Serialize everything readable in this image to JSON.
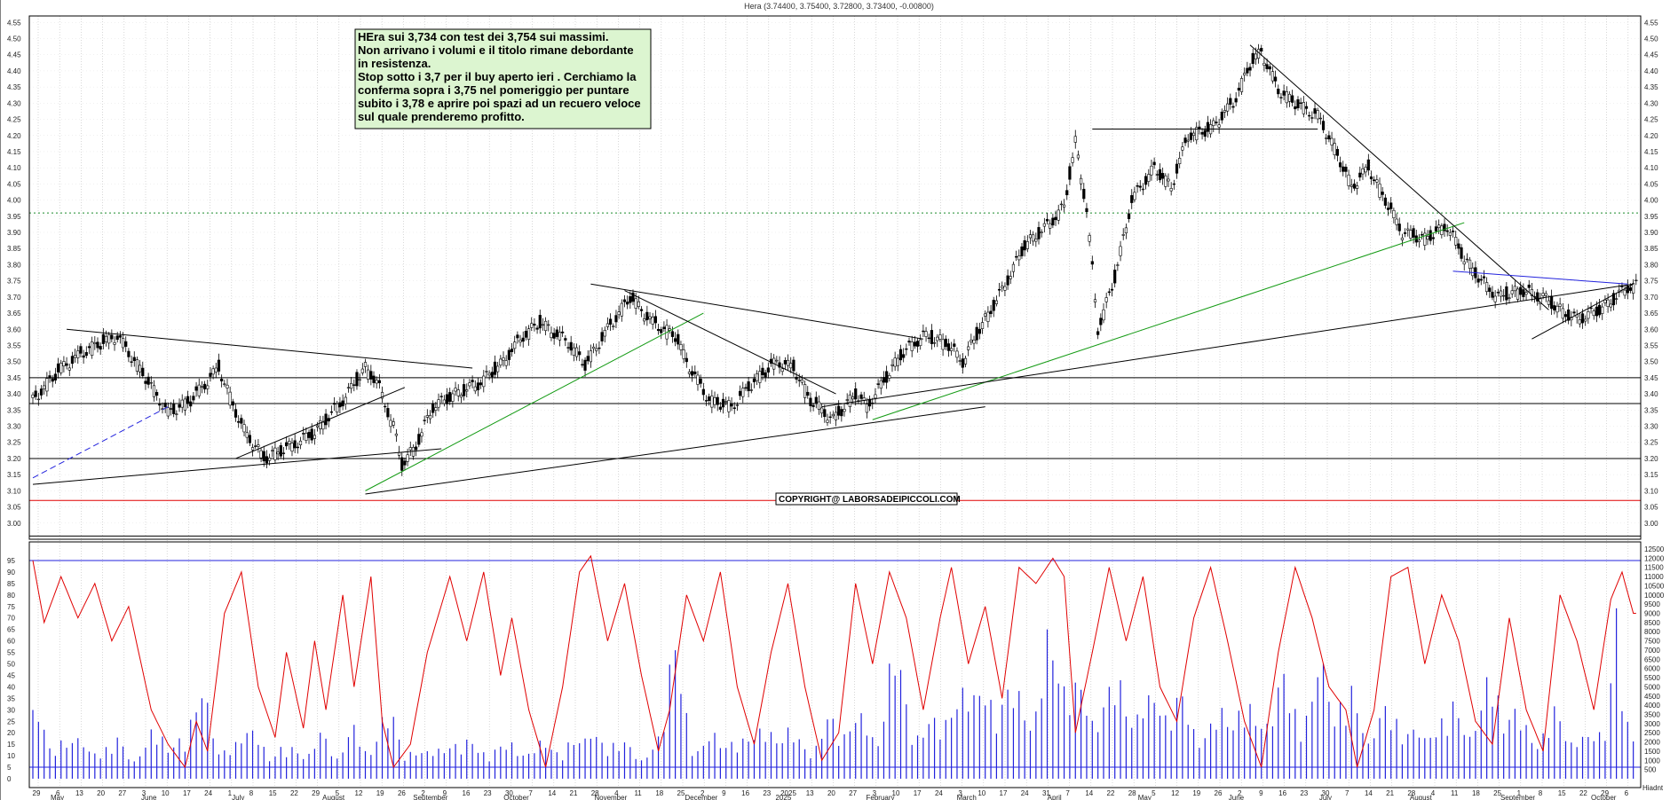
{
  "header": "Hera (3.74400, 3.75400, 3.72800, 3.73400, -0.00800)",
  "note": {
    "lines": [
      "HEra sui 3,734 con test dei 3,754 sui massimi.",
      "Non arrivano i volumi e il titolo rimane debordante",
      "in resistenza.",
      "Stop sotto i 3,7 per il buy aperto ieri . Cerchiamo la",
      "conferma sopra i 3,75 nel pomeriggio per puntare",
      "subito i 3,78 e aprire poi spazi ad un recuero veloce",
      "sul quale prenderemo profitto."
    ]
  },
  "copyright": "COPYRIGHT@ LABORSADEIPICCOLI.COM",
  "colors": {
    "candle": "#000000",
    "oscillator": "#e00000",
    "volume": "#2222dd",
    "trend_green": "#129a12",
    "note_bg": "#dcf5d0",
    "support_red": "#e00000",
    "resistance_dotted": "#1a8a2a"
  },
  "chart_data": {
    "type": "candlestick",
    "grid": true,
    "y_axis_side": "both",
    "price_axis": {
      "ylim": [
        2.95,
        4.57
      ],
      "ticks": [
        "4.55",
        "4.50",
        "4.45",
        "4.40",
        "4.35",
        "4.30",
        "4.25",
        "4.20",
        "4.15",
        "4.10",
        "4.05",
        "4.00",
        "3.95",
        "3.90",
        "3.85",
        "3.80",
        "3.75",
        "3.70",
        "3.65",
        "3.60",
        "3.55",
        "3.50",
        "3.45",
        "3.40",
        "3.35",
        "3.30",
        "3.25",
        "3.20",
        "3.15",
        "3.10",
        "3.05",
        "3.00"
      ]
    },
    "oscillator_axis": {
      "ylim": [
        0,
        100
      ],
      "ticks": [
        "95",
        "90",
        "85",
        "80",
        "75",
        "70",
        "65",
        "60",
        "55",
        "50",
        "45",
        "40",
        "35",
        "30",
        "25",
        "20",
        "15",
        "10",
        "5",
        "0"
      ]
    },
    "volume_axis": {
      "ylim": [
        0,
        12500
      ],
      "ticks": [
        "12500",
        "12000",
        "11500",
        "11000",
        "10500",
        "10000",
        "9500",
        "9000",
        "8500",
        "8000",
        "7500",
        "7000",
        "6500",
        "6000",
        "5500",
        "5000",
        "4500",
        "4000",
        "3500",
        "3000",
        "2500",
        "2000",
        "1500",
        "1000",
        "500"
      ]
    },
    "day_labels": [
      "29",
      "6",
      "13",
      "20",
      "27",
      "3",
      "10",
      "17",
      "24",
      "1",
      "8",
      "15",
      "22",
      "29",
      "5",
      "12",
      "19",
      "26",
      "2",
      "9",
      "16",
      "23",
      "30",
      "7",
      "14",
      "21",
      "28",
      "4",
      "11",
      "18",
      "25",
      "2",
      "9",
      "16",
      "23",
      "2025",
      "13",
      "20",
      "27",
      "3",
      "10",
      "17",
      "24",
      "3",
      "10",
      "17",
      "24",
      "31",
      "7",
      "14",
      "22",
      "28",
      "5",
      "12",
      "19",
      "26",
      "2",
      "9",
      "16",
      "23",
      "30",
      "7",
      "14",
      "21",
      "28",
      "4",
      "11",
      "18",
      "25",
      "1",
      "8",
      "15",
      "22",
      "29",
      "6"
    ],
    "month_labels": [
      "May",
      "June",
      "July",
      "August",
      "September",
      "October",
      "November",
      "December",
      "2025",
      "February",
      "March",
      "April",
      "May",
      "June",
      "July",
      "August",
      "September",
      "October"
    ],
    "axis_note": "Hiadnt",
    "horizontal_levels": [
      {
        "value": 3.45,
        "color": "#000000",
        "style": "solid"
      },
      {
        "value": 3.37,
        "color": "#000000",
        "style": "solid"
      },
      {
        "value": 3.2,
        "color": "#000000",
        "style": "solid"
      },
      {
        "value": 3.07,
        "color": "#e00000",
        "style": "solid"
      },
      {
        "value": 2.96,
        "color": "#000000",
        "style": "solid"
      },
      {
        "value": 3.96,
        "color": "#1a8a2a",
        "style": "dotted"
      }
    ],
    "oscillator_levels": [
      {
        "value": 95,
        "color": "#2222dd"
      },
      {
        "value": 5,
        "color": "#2222dd"
      }
    ],
    "price_path": [
      [
        0,
        3.38
      ],
      [
        10,
        3.48
      ],
      [
        20,
        3.54
      ],
      [
        30,
        3.58
      ],
      [
        40,
        3.45
      ],
      [
        48,
        3.34
      ],
      [
        56,
        3.38
      ],
      [
        66,
        3.48
      ],
      [
        74,
        3.3
      ],
      [
        82,
        3.2
      ],
      [
        92,
        3.24
      ],
      [
        100,
        3.28
      ],
      [
        110,
        3.38
      ],
      [
        118,
        3.48
      ],
      [
        122,
        3.44
      ],
      [
        128,
        3.3
      ],
      [
        131,
        3.18
      ],
      [
        136,
        3.24
      ],
      [
        142,
        3.36
      ],
      [
        150,
        3.4
      ],
      [
        158,
        3.43
      ],
      [
        166,
        3.49
      ],
      [
        174,
        3.58
      ],
      [
        180,
        3.62
      ],
      [
        190,
        3.56
      ],
      [
        196,
        3.49
      ],
      [
        204,
        3.6
      ],
      [
        212,
        3.7
      ],
      [
        220,
        3.62
      ],
      [
        228,
        3.58
      ],
      [
        232,
        3.5
      ],
      [
        240,
        3.38
      ],
      [
        248,
        3.36
      ],
      [
        256,
        3.44
      ],
      [
        264,
        3.5
      ],
      [
        270,
        3.48
      ],
      [
        276,
        3.38
      ],
      [
        284,
        3.32
      ],
      [
        292,
        3.4
      ],
      [
        296,
        3.36
      ],
      [
        302,
        3.44
      ],
      [
        308,
        3.52
      ],
      [
        316,
        3.58
      ],
      [
        324,
        3.56
      ],
      [
        330,
        3.5
      ],
      [
        336,
        3.6
      ],
      [
        344,
        3.72
      ],
      [
        352,
        3.86
      ],
      [
        360,
        3.92
      ],
      [
        366,
        3.98
      ],
      [
        370,
        4.18
      ],
      [
        374,
        3.97
      ],
      [
        378,
        3.6
      ],
      [
        384,
        3.76
      ],
      [
        390,
        4.0
      ],
      [
        398,
        4.1
      ],
      [
        404,
        4.04
      ],
      [
        410,
        4.2
      ],
      [
        418,
        4.22
      ],
      [
        426,
        4.3
      ],
      [
        432,
        4.42
      ],
      [
        436,
        4.46
      ],
      [
        442,
        4.34
      ],
      [
        448,
        4.3
      ],
      [
        456,
        4.26
      ],
      [
        462,
        4.16
      ],
      [
        468,
        4.04
      ],
      [
        474,
        4.1
      ],
      [
        480,
        4.0
      ],
      [
        486,
        3.9
      ],
      [
        494,
        3.88
      ],
      [
        502,
        3.92
      ],
      [
        508,
        3.82
      ],
      [
        514,
        3.75
      ],
      [
        520,
        3.7
      ],
      [
        528,
        3.72
      ],
      [
        536,
        3.7
      ],
      [
        542,
        3.66
      ],
      [
        548,
        3.63
      ],
      [
        556,
        3.66
      ],
      [
        562,
        3.7
      ],
      [
        566,
        3.73
      ],
      [
        568,
        3.734
      ]
    ],
    "oscillator_path": [
      [
        0,
        95
      ],
      [
        4,
        68
      ],
      [
        10,
        88
      ],
      [
        16,
        70
      ],
      [
        22,
        85
      ],
      [
        28,
        60
      ],
      [
        34,
        75
      ],
      [
        42,
        30
      ],
      [
        48,
        15
      ],
      [
        54,
        5
      ],
      [
        58,
        25
      ],
      [
        62,
        12
      ],
      [
        68,
        72
      ],
      [
        74,
        90
      ],
      [
        80,
        40
      ],
      [
        86,
        18
      ],
      [
        90,
        55
      ],
      [
        96,
        22
      ],
      [
        100,
        60
      ],
      [
        104,
        30
      ],
      [
        110,
        80
      ],
      [
        114,
        40
      ],
      [
        120,
        88
      ],
      [
        124,
        25
      ],
      [
        128,
        5
      ],
      [
        134,
        15
      ],
      [
        140,
        55
      ],
      [
        148,
        88
      ],
      [
        154,
        60
      ],
      [
        160,
        90
      ],
      [
        166,
        45
      ],
      [
        170,
        70
      ],
      [
        176,
        30
      ],
      [
        182,
        5
      ],
      [
        188,
        40
      ],
      [
        194,
        90
      ],
      [
        198,
        97
      ],
      [
        204,
        60
      ],
      [
        210,
        85
      ],
      [
        216,
        45
      ],
      [
        222,
        12
      ],
      [
        226,
        30
      ],
      [
        232,
        80
      ],
      [
        238,
        60
      ],
      [
        244,
        90
      ],
      [
        250,
        40
      ],
      [
        256,
        15
      ],
      [
        262,
        55
      ],
      [
        268,
        85
      ],
      [
        274,
        40
      ],
      [
        280,
        8
      ],
      [
        286,
        20
      ],
      [
        292,
        85
      ],
      [
        298,
        50
      ],
      [
        304,
        90
      ],
      [
        310,
        70
      ],
      [
        316,
        30
      ],
      [
        322,
        70
      ],
      [
        326,
        92
      ],
      [
        332,
        50
      ],
      [
        338,
        75
      ],
      [
        344,
        35
      ],
      [
        350,
        92
      ],
      [
        356,
        85
      ],
      [
        362,
        96
      ],
      [
        366,
        88
      ],
      [
        370,
        20
      ],
      [
        376,
        55
      ],
      [
        382,
        92
      ],
      [
        388,
        60
      ],
      [
        394,
        88
      ],
      [
        400,
        40
      ],
      [
        406,
        25
      ],
      [
        412,
        70
      ],
      [
        418,
        92
      ],
      [
        424,
        60
      ],
      [
        430,
        25
      ],
      [
        436,
        5
      ],
      [
        442,
        55
      ],
      [
        448,
        92
      ],
      [
        454,
        70
      ],
      [
        460,
        40
      ],
      [
        466,
        30
      ],
      [
        470,
        5
      ],
      [
        476,
        30
      ],
      [
        482,
        88
      ],
      [
        488,
        92
      ],
      [
        494,
        50
      ],
      [
        500,
        80
      ],
      [
        506,
        60
      ],
      [
        512,
        25
      ],
      [
        518,
        15
      ],
      [
        524,
        70
      ],
      [
        530,
        30
      ],
      [
        536,
        12
      ],
      [
        542,
        80
      ],
      [
        548,
        60
      ],
      [
        554,
        30
      ],
      [
        560,
        78
      ],
      [
        564,
        90
      ],
      [
        568,
        72
      ]
    ],
    "volume_path": [
      [
        0,
        6800
      ],
      [
        6,
        1900
      ],
      [
        12,
        2200
      ],
      [
        18,
        3100
      ],
      [
        24,
        1600
      ],
      [
        30,
        2400
      ],
      [
        36,
        1200
      ],
      [
        42,
        3800
      ],
      [
        48,
        1800
      ],
      [
        54,
        2600
      ],
      [
        60,
        7600
      ],
      [
        66,
        1500
      ],
      [
        72,
        2100
      ],
      [
        78,
        4300
      ],
      [
        84,
        1300
      ],
      [
        90,
        2000
      ],
      [
        96,
        1700
      ],
      [
        102,
        3400
      ],
      [
        108,
        1100
      ],
      [
        114,
        3600
      ],
      [
        120,
        2100
      ],
      [
        126,
        4600
      ],
      [
        132,
        1400
      ],
      [
        138,
        2500
      ],
      [
        144,
        1800
      ],
      [
        150,
        2000
      ],
      [
        156,
        3000
      ],
      [
        162,
        1600
      ],
      [
        168,
        2200
      ],
      [
        174,
        1700
      ],
      [
        180,
        2900
      ],
      [
        186,
        1500
      ],
      [
        192,
        2400
      ],
      [
        198,
        3900
      ],
      [
        204,
        1800
      ],
      [
        210,
        2300
      ],
      [
        216,
        1600
      ],
      [
        222,
        2700
      ],
      [
        228,
        8300
      ],
      [
        234,
        2100
      ],
      [
        240,
        3300
      ],
      [
        246,
        1900
      ],
      [
        252,
        2600
      ],
      [
        258,
        4200
      ],
      [
        264,
        2300
      ],
      [
        270,
        3100
      ],
      [
        276,
        2000
      ],
      [
        282,
        4000
      ],
      [
        288,
        2500
      ],
      [
        294,
        5200
      ],
      [
        300,
        2400
      ],
      [
        306,
        8400
      ],
      [
        312,
        3000
      ],
      [
        318,
        4500
      ],
      [
        324,
        3300
      ],
      [
        330,
        5600
      ],
      [
        336,
        7800
      ],
      [
        342,
        3700
      ],
      [
        348,
        6000
      ],
      [
        354,
        4300
      ],
      [
        360,
        9600
      ],
      [
        366,
        5100
      ],
      [
        372,
        6900
      ],
      [
        378,
        4100
      ],
      [
        384,
        6300
      ],
      [
        390,
        3700
      ],
      [
        396,
        7100
      ],
      [
        402,
        3600
      ],
      [
        408,
        5300
      ],
      [
        414,
        3000
      ],
      [
        420,
        4400
      ],
      [
        426,
        3200
      ],
      [
        432,
        5900
      ],
      [
        438,
        3700
      ],
      [
        444,
        6300
      ],
      [
        450,
        3100
      ],
      [
        456,
        9700
      ],
      [
        462,
        3500
      ],
      [
        468,
        5800
      ],
      [
        474,
        3300
      ],
      [
        480,
        4600
      ],
      [
        486,
        2600
      ],
      [
        492,
        4000
      ],
      [
        498,
        3100
      ],
      [
        504,
        4400
      ],
      [
        510,
        3000
      ],
      [
        516,
        7700
      ],
      [
        522,
        3300
      ],
      [
        528,
        4600
      ],
      [
        534,
        2700
      ],
      [
        540,
        4300
      ],
      [
        546,
        2100
      ],
      [
        552,
        3900
      ],
      [
        558,
        2900
      ],
      [
        562,
        9600
      ],
      [
        566,
        3400
      ],
      [
        568,
        2800
      ]
    ],
    "trendlines": [
      {
        "from": [
          0,
          3.12
        ],
        "to": [
          145,
          3.23
        ],
        "color": "#000000"
      },
      {
        "from": [
          0,
          3.14
        ],
        "to": [
          48,
          3.36
        ],
        "color": "#2222dd",
        "style": "dashed"
      },
      {
        "from": [
          12,
          3.6
        ],
        "to": [
          156,
          3.48
        ],
        "color": "#000000"
      },
      {
        "from": [
          72,
          3.2
        ],
        "to": [
          132,
          3.42
        ],
        "color": "#000000"
      },
      {
        "from": [
          118,
          3.09
        ],
        "to": [
          338,
          3.36
        ],
        "color": "#000000"
      },
      {
        "from": [
          118,
          3.1
        ],
        "to": [
          238,
          3.65
        ],
        "color": "#129a12"
      },
      {
        "from": [
          198,
          3.74
        ],
        "to": [
          316,
          3.57
        ],
        "color": "#000000"
      },
      {
        "from": [
          210,
          3.72
        ],
        "to": [
          285,
          3.4
        ],
        "color": "#000000"
      },
      {
        "from": [
          298,
          3.32
        ],
        "to": [
          508,
          3.93
        ],
        "color": "#129a12"
      },
      {
        "from": [
          280,
          3.36
        ],
        "to": [
          568,
          3.74
        ],
        "color": "#000000"
      },
      {
        "from": [
          376,
          4.22
        ],
        "to": [
          456,
          4.22
        ],
        "color": "#000000"
      },
      {
        "from": [
          432,
          4.48
        ],
        "to": [
          538,
          3.66
        ],
        "color": "#000000"
      },
      {
        "from": [
          504,
          3.78
        ],
        "to": [
          566,
          3.74
        ],
        "color": "#2222dd"
      },
      {
        "from": [
          532,
          3.57
        ],
        "to": [
          568,
          3.74
        ],
        "color": "#000000"
      }
    ]
  }
}
